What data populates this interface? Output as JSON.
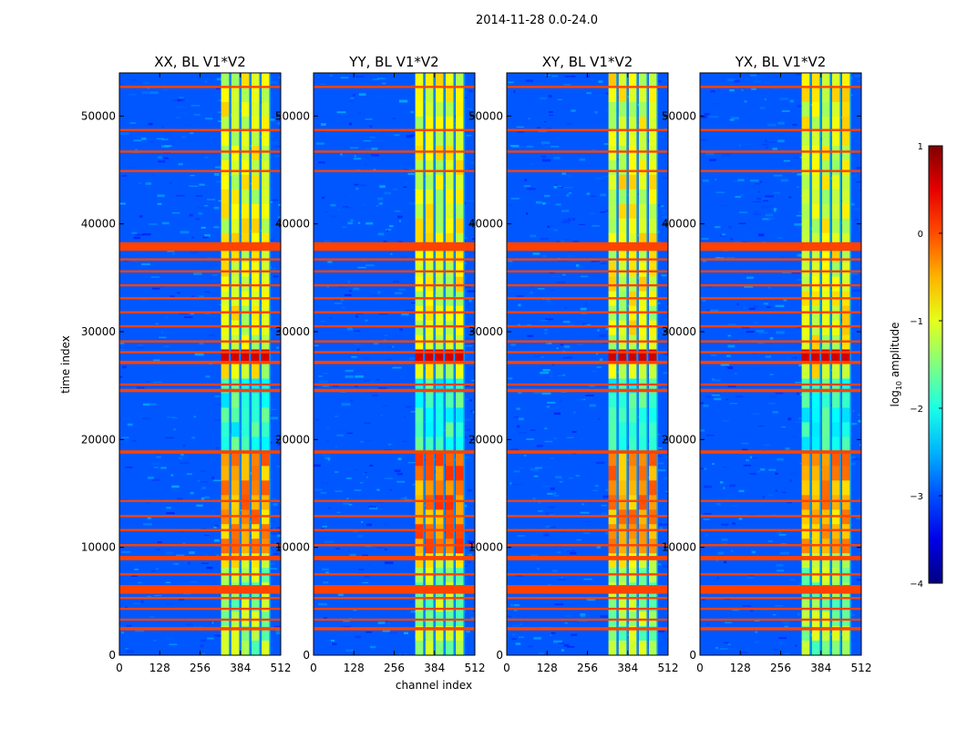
{
  "chart_data": {
    "type": "heatmap",
    "title": "2014-11-28 0.0-24.0",
    "xlabel": "channel index",
    "ylabel": "time index",
    "xlim": [
      0,
      512
    ],
    "ylim": [
      0,
      54000
    ],
    "x_ticks": [
      "0",
      "128",
      "256",
      "384",
      "512"
    ],
    "x_tick_values": [
      0,
      128,
      256,
      384,
      512
    ],
    "y_ticks": [
      "0",
      "10000",
      "20000",
      "30000",
      "40000",
      "50000"
    ],
    "y_tick_values": [
      0,
      10000,
      20000,
      30000,
      40000,
      50000
    ],
    "colorbar": {
      "label": "log10 amplitude",
      "label_main": "log",
      "label_sub": "10",
      "label_rest": " amplitude",
      "range": [
        -4,
        1
      ],
      "ticks": [
        "1",
        "0",
        "−1",
        "−2",
        "−3",
        "−4"
      ],
      "tick_values": [
        1,
        0,
        -1,
        -2,
        -3,
        -4
      ],
      "colormap": "jet"
    },
    "panels": [
      {
        "title": "XX, BL V1*V2",
        "strength": 1.0
      },
      {
        "title": "YY, BL V1*V2",
        "strength": 1.25
      },
      {
        "title": "XY, BL V1*V2",
        "strength": 1.05
      },
      {
        "title": "YX, BL V1*V2",
        "strength": 1.0
      }
    ],
    "flagged_time_ranges": [
      [
        2300,
        2600
      ],
      [
        3200,
        3400
      ],
      [
        4200,
        4400
      ],
      [
        5200,
        5400
      ],
      [
        5700,
        6500
      ],
      [
        7400,
        7600
      ],
      [
        8800,
        9200
      ],
      [
        10100,
        10300
      ],
      [
        11500,
        11700
      ],
      [
        12800,
        13000
      ],
      [
        14200,
        14400
      ],
      [
        18700,
        19000
      ],
      [
        24400,
        24700
      ],
      [
        25000,
        25200
      ],
      [
        27000,
        27300
      ],
      [
        28000,
        28200
      ],
      [
        29000,
        29200
      ],
      [
        30400,
        30600
      ],
      [
        31700,
        31900
      ],
      [
        33000,
        33200
      ],
      [
        34200,
        34400
      ],
      [
        35500,
        35700
      ],
      [
        36600,
        36800
      ],
      [
        37500,
        38300
      ],
      [
        44800,
        45000
      ],
      [
        46600,
        46800
      ],
      [
        48600,
        48800
      ],
      [
        52600,
        52800
      ]
    ],
    "bright_band": {
      "channel_range": [
        320,
        480
      ],
      "log_amplitude": -1.0
    },
    "background_log_amplitude": -3.0
  }
}
